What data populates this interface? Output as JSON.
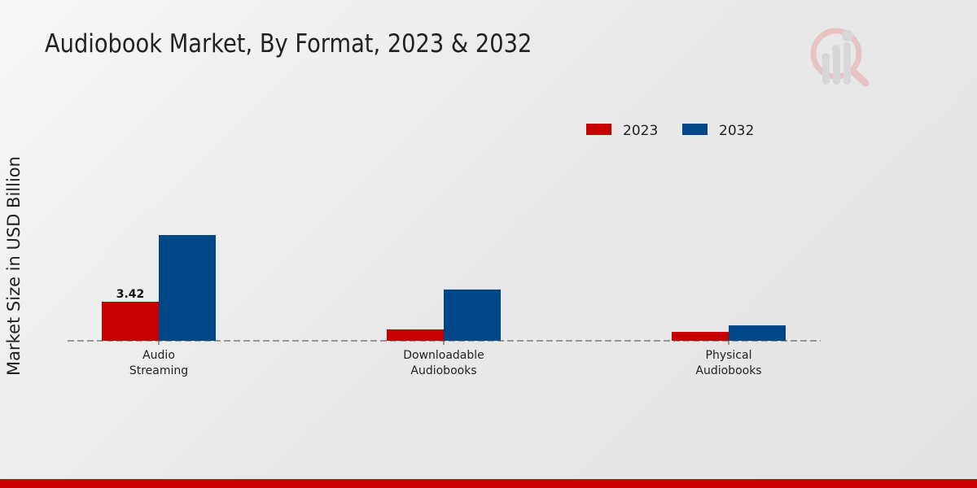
{
  "chart_data": {
    "type": "bar",
    "title": "Audiobook Market, By Format, 2023 & 2032",
    "xlabel": "",
    "ylabel": "Market Size in USD Billion",
    "categories": [
      [
        "Audio",
        "Streaming"
      ],
      [
        "Downloadable",
        "Audiobooks"
      ],
      [
        "Physical",
        "Audiobooks"
      ]
    ],
    "series": [
      {
        "name": "2023",
        "color": "#c80000",
        "values": [
          3.42,
          1.0,
          0.78
        ]
      },
      {
        "name": "2032",
        "color": "#004788",
        "values": [
          9.26,
          4.49,
          1.35
        ]
      }
    ],
    "data_labels": [
      {
        "series": "2023",
        "category_index": 0,
        "text": "3.42"
      }
    ],
    "ylim": [
      0,
      10
    ],
    "grid": false,
    "legend_position": "top-right"
  }
}
